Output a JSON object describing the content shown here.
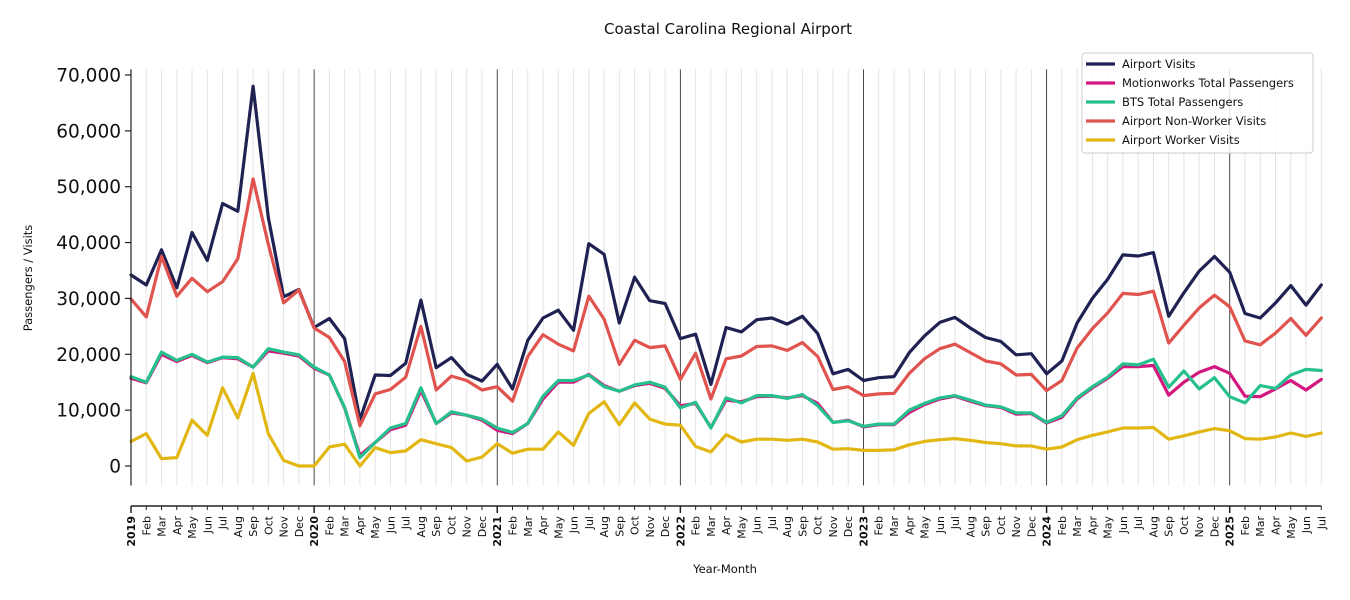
{
  "chart_data": {
    "type": "line",
    "title": "Coastal Carolina Regional Airport",
    "xlabel": "Year-Month",
    "ylabel": "Passengers / Visits",
    "ylim": [
      -3500,
      71000
    ],
    "yticks": [
      0,
      10000,
      20000,
      30000,
      40000,
      50000,
      60000,
      70000
    ],
    "ytick_labels": [
      "0",
      "10,000",
      "20,000",
      "30,000",
      "40,000",
      "50,000",
      "60,000",
      "70,000"
    ],
    "grid": "vertical monthly gridlines, year separator lines",
    "legend_position": "top-right",
    "x": [
      "2019",
      "Feb",
      "Mar",
      "Apr",
      "May",
      "Jun",
      "Jul",
      "Aug",
      "Sep",
      "Oct",
      "Nov",
      "Dec",
      "2020",
      "Feb",
      "Mar",
      "Apr",
      "May",
      "Jun",
      "Jul",
      "Aug",
      "Sep",
      "Oct",
      "Nov",
      "Dec",
      "2021",
      "Feb",
      "Mar",
      "Apr",
      "May",
      "Jun",
      "Jul",
      "Aug",
      "Sep",
      "Oct",
      "Nov",
      "Dec",
      "2022",
      "Feb",
      "Mar",
      "Apr",
      "May",
      "Jun",
      "Jul",
      "Aug",
      "Sep",
      "Oct",
      "Nov",
      "Dec",
      "2023",
      "Feb",
      "Mar",
      "Apr",
      "May",
      "Jun",
      "Jul",
      "Aug",
      "Sep",
      "Oct",
      "Nov",
      "Dec",
      "2024",
      "Feb",
      "Mar",
      "Apr",
      "May",
      "Jun",
      "Jul",
      "Aug",
      "Sep",
      "Oct",
      "Nov",
      "Dec",
      "2025",
      "Feb",
      "Mar",
      "Apr",
      "May",
      "Jun",
      "Jul"
    ],
    "series": [
      {
        "name": "Airport Visits",
        "color": "#1f2152",
        "values": [
          34200,
          32400,
          38700,
          31900,
          41800,
          36800,
          47000,
          45600,
          68000,
          44500,
          30300,
          31600,
          24800,
          26400,
          22800,
          8300,
          16300,
          16200,
          18400,
          29700,
          17600,
          19400,
          16400,
          15200,
          18200,
          13800,
          22500,
          26500,
          27900,
          24300,
          39800,
          37900,
          25600,
          33800,
          29600,
          29100,
          22800,
          23600,
          14600,
          24800,
          24000,
          26200,
          26500,
          25400,
          26800,
          23700,
          16500,
          17300,
          15300,
          15800,
          16000,
          20300,
          23300,
          25700,
          26600,
          24700,
          23000,
          22300,
          19900,
          20100,
          16500,
          18800,
          25600,
          30000,
          33400,
          37800,
          37600,
          38200,
          26800,
          31000,
          34900,
          37500,
          34700,
          27300,
          26500,
          29200,
          32300,
          28800,
          32400
        ]
      },
      {
        "name": "Motionworks Total Passengers",
        "color": "#d3177f",
        "values": [
          15700,
          14900,
          20000,
          18700,
          19800,
          18500,
          19400,
          19200,
          17700,
          20600,
          20200,
          19700,
          17500,
          16300,
          10400,
          1900,
          4200,
          6500,
          7300,
          13500,
          7600,
          9500,
          9100,
          8200,
          6400,
          5800,
          7600,
          12000,
          15000,
          15000,
          16400,
          14400,
          13400,
          14400,
          14800,
          13900,
          10800,
          11200,
          6900,
          11800,
          11500,
          12400,
          12500,
          12200,
          12600,
          11200,
          7800,
          8200,
          7000,
          7400,
          7400,
          9600,
          11000,
          12000,
          12500,
          11600,
          10800,
          10500,
          9300,
          9400,
          7700,
          8700,
          12000,
          14000,
          15700,
          17800,
          17800,
          18000,
          12700,
          15000,
          16800,
          17800,
          16600,
          12500,
          12400,
          13800,
          15300,
          13600,
          15500
        ]
      },
      {
        "name": "BTS Total Passengers",
        "color": "#26c08e",
        "values": [
          16000,
          15000,
          20400,
          18900,
          20000,
          18600,
          19500,
          19400,
          17700,
          21000,
          20400,
          19900,
          17700,
          16300,
          10500,
          1500,
          4200,
          6800,
          7600,
          14000,
          7600,
          9700,
          9100,
          8400,
          6800,
          6000,
          7600,
          12500,
          15300,
          15300,
          16300,
          14200,
          13400,
          14500,
          15000,
          14100,
          10400,
          11400,
          6800,
          12200,
          11300,
          12600,
          12600,
          12100,
          12800,
          10800,
          7800,
          8100,
          7100,
          7500,
          7500,
          10000,
          11200,
          12200,
          12600,
          11800,
          10900,
          10600,
          9500,
          9500,
          7800,
          9000,
          12200,
          14200,
          15900,
          18300,
          18100,
          19100,
          14100,
          17000,
          13800,
          15800,
          12400,
          11300,
          14400,
          13900,
          16300,
          17300,
          17100
        ]
      },
      {
        "name": "Airport Non-Worker Visits",
        "color": "#e0534e",
        "values": [
          29900,
          26700,
          37500,
          30400,
          33600,
          31200,
          33000,
          37100,
          51400,
          39700,
          29200,
          31500,
          24700,
          23000,
          18700,
          7200,
          12900,
          13700,
          15900,
          25000,
          13600,
          16100,
          15300,
          13600,
          14200,
          11600,
          19600,
          23500,
          21800,
          20600,
          30400,
          26300,
          18200,
          22500,
          21200,
          21500,
          15500,
          20200,
          12000,
          19200,
          19700,
          21400,
          21500,
          20700,
          22100,
          19600,
          13700,
          14200,
          12600,
          12900,
          13000,
          16600,
          19200,
          21000,
          21800,
          20300,
          18800,
          18300,
          16300,
          16400,
          13500,
          15300,
          21100,
          24600,
          27400,
          30900,
          30700,
          31300,
          22000,
          25200,
          28300,
          30600,
          28500,
          22400,
          21700,
          23800,
          26400,
          23400,
          26500
        ]
      },
      {
        "name": "Airport Worker Visits",
        "color": "#e2b714",
        "values": [
          4400,
          5800,
          1300,
          1500,
          8200,
          5500,
          14000,
          8600,
          16600,
          5800,
          1000,
          0,
          0,
          3400,
          3900,
          0,
          3300,
          2400,
          2700,
          4700,
          4000,
          3300,
          900,
          1600,
          4000,
          2300,
          3000,
          3000,
          6100,
          3700,
          9400,
          11500,
          7400,
          11300,
          8400,
          7500,
          7300,
          3500,
          2500,
          5600,
          4300,
          4800,
          4800,
          4600,
          4800,
          4300,
          3000,
          3100,
          2800,
          2800,
          2900,
          3800,
          4400,
          4700,
          4900,
          4600,
          4200,
          4000,
          3600,
          3600,
          3000,
          3400,
          4700,
          5500,
          6100,
          6800,
          6800,
          6900,
          4800,
          5400,
          6100,
          6700,
          6300,
          4900,
          4800,
          5200,
          5900,
          5300,
          5900
        ]
      }
    ]
  }
}
